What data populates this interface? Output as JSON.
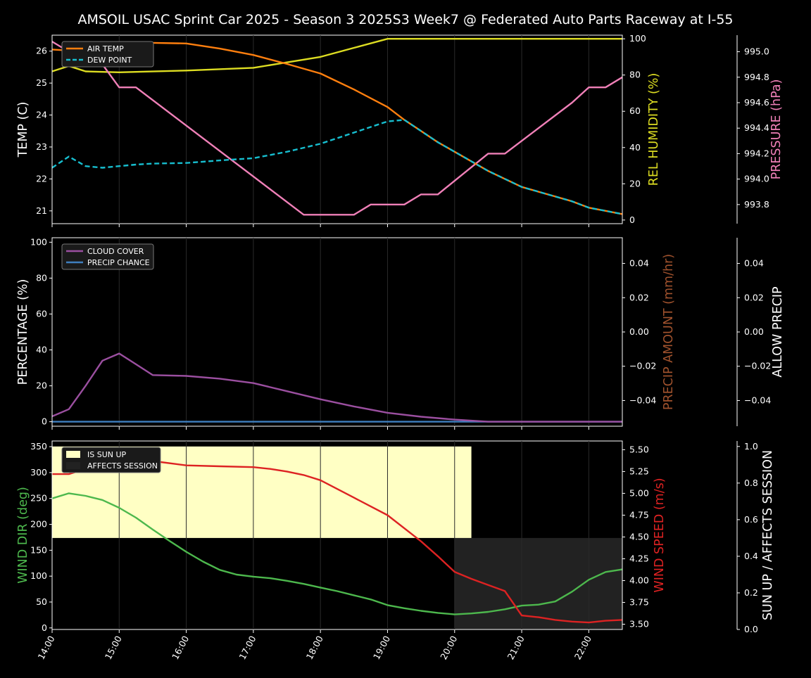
{
  "title": "AMSOIL USAC Sprint Car 2025 - Season 3 2025S3 Week7 @ Federated Auto Parts Raceway at I-55",
  "colors": {
    "background": "#000000",
    "air_temp": "#ff7f0e",
    "dew_point": "#17becf",
    "rel_humidity": "#dddd22",
    "pressure": "#f080b8",
    "cloud_cover": "#9b4fa0",
    "precip_chance": "#3f7fbf",
    "precip_amount_label": "#a0522d",
    "wind_dir": "#4db84d",
    "wind_speed": "#dd2222",
    "sun_up": "#ffffc4",
    "affects_session": "#222222"
  },
  "x_ticks": [
    "14:00",
    "15:00",
    "16:00",
    "17:00",
    "18:00",
    "19:00",
    "20:00",
    "21:00",
    "22:00"
  ],
  "chart_data": [
    {
      "type": "line",
      "panel": "top",
      "x_range": [
        "14:00",
        "22:30"
      ],
      "left_axis": {
        "label": "TEMP (C)",
        "ylim": [
          20.6,
          26.5
        ],
        "ticks": [
          21,
          22,
          23,
          24,
          25,
          26
        ]
      },
      "right_axis": {
        "label": "REL HUMIDITY (%)",
        "ylim": [
          -2,
          102
        ],
        "ticks": [
          0,
          20,
          40,
          60,
          80,
          100
        ]
      },
      "right_axis2": {
        "label": "PRESSURE (hPa)",
        "ylim": [
          993.65,
          995.13
        ],
        "ticks": [
          "993.8",
          "994.0",
          "994.2",
          "994.4",
          "994.6",
          "994.8",
          "995.0"
        ]
      },
      "legend": {
        "position": "top-left",
        "entries": [
          "AIR TEMP",
          "DEW POINT"
        ]
      },
      "series": [
        {
          "name": "AIR TEMP",
          "axis": "left",
          "style": "solid",
          "x": [
            "14:00",
            "14:15",
            "14:30",
            "14:45",
            "15:00",
            "15:15",
            "15:30",
            "16:00",
            "16:30",
            "17:00",
            "17:30",
            "18:00",
            "18:30",
            "19:00",
            "19:15",
            "19:30",
            "19:45",
            "20:00",
            "20:15",
            "20:30",
            "20:45",
            "21:00",
            "21:15",
            "21:30",
            "21:45",
            "22:00",
            "22:15",
            "22:30"
          ],
          "values": [
            26.05,
            26.02,
            26.1,
            26.2,
            26.28,
            26.28,
            26.26,
            26.24,
            26.08,
            25.88,
            25.6,
            25.3,
            24.8,
            24.25,
            23.85,
            23.5,
            23.15,
            22.85,
            22.55,
            22.25,
            22.0,
            21.75,
            21.6,
            21.45,
            21.3,
            21.1,
            21.0,
            20.9
          ]
        },
        {
          "name": "DEW POINT",
          "axis": "left",
          "style": "dashed",
          "x": [
            "14:00",
            "14:15",
            "14:30",
            "14:45",
            "15:00",
            "15:15",
            "15:30",
            "16:00",
            "16:30",
            "17:00",
            "17:30",
            "18:00",
            "18:30",
            "19:00",
            "19:15",
            "19:30",
            "19:45",
            "20:00",
            "20:15",
            "20:30",
            "20:45",
            "21:00",
            "21:15",
            "21:30",
            "21:45",
            "22:00",
            "22:15",
            "22:30"
          ],
          "values": [
            22.35,
            22.7,
            22.4,
            22.35,
            22.4,
            22.45,
            22.48,
            22.5,
            22.58,
            22.65,
            22.85,
            23.1,
            23.45,
            23.8,
            23.85,
            23.5,
            23.15,
            22.85,
            22.55,
            22.25,
            22.0,
            21.75,
            21.6,
            21.45,
            21.3,
            21.1,
            21.0,
            20.9
          ]
        },
        {
          "name": "REL HUMIDITY",
          "axis": "right",
          "style": "solid",
          "x": [
            "14:00",
            "14:15",
            "14:30",
            "15:00",
            "16:00",
            "17:00",
            "17:30",
            "18:00",
            "18:30",
            "19:00",
            "19:15",
            "19:30",
            "20:00",
            "21:00",
            "22:00",
            "22:30"
          ],
          "values": [
            82,
            85,
            82,
            81.5,
            82.5,
            84,
            87,
            90,
            95,
            100,
            100,
            100,
            100,
            100,
            100,
            100
          ]
        },
        {
          "name": "PRESSURE",
          "axis": "right2",
          "style": "solid",
          "x": [
            "14:00",
            "14:15",
            "14:30",
            "14:45",
            "15:00",
            "15:15",
            "17:45",
            "18:30",
            "18:45",
            "19:15",
            "19:30",
            "19:45",
            "20:30",
            "20:45",
            "21:45",
            "22:00",
            "22:15",
            "22:30"
          ],
          "values": [
            995.08,
            995.0,
            995.0,
            994.9,
            994.72,
            994.72,
            993.72,
            993.72,
            993.8,
            993.8,
            993.88,
            993.88,
            994.2,
            994.2,
            994.6,
            994.72,
            994.72,
            994.8
          ]
        }
      ]
    },
    {
      "type": "line",
      "panel": "middle",
      "x_range": [
        "14:00",
        "22:30"
      ],
      "left_axis": {
        "label": "PERCENTAGE (%)",
        "ylim": [
          -2.5,
          102.5
        ],
        "ticks": [
          0,
          20,
          40,
          60,
          80,
          100
        ]
      },
      "right_axis": {
        "label": "PRECIP AMOUNT (mm/hr)",
        "ylim": [
          -0.055,
          0.055
        ],
        "ticks": [
          "−0.04",
          "−0.02",
          "0.00",
          "0.02",
          "0.04"
        ]
      },
      "right_axis2": {
        "label": "ALLOW PRECIP",
        "ylim": [
          -0.055,
          0.055
        ],
        "ticks": [
          "−0.04",
          "−0.02",
          "0.00",
          "0.02",
          "0.04"
        ]
      },
      "legend": {
        "position": "top-left",
        "entries": [
          "CLOUD COVER",
          "PRECIP CHANCE"
        ]
      },
      "series": [
        {
          "name": "CLOUD COVER",
          "axis": "left",
          "x": [
            "14:00",
            "14:15",
            "14:30",
            "14:45",
            "15:00",
            "15:15",
            "15:30",
            "16:00",
            "16:30",
            "17:00",
            "17:30",
            "18:00",
            "18:30",
            "19:00",
            "19:30",
            "20:00",
            "20:30",
            "21:00",
            "22:00",
            "22:30"
          ],
          "values": [
            3,
            7,
            20,
            34,
            38,
            32,
            26,
            25.5,
            24,
            21.5,
            17,
            12.5,
            8.5,
            5,
            2.8,
            1.2,
            0,
            0,
            0,
            0
          ]
        },
        {
          "name": "PRECIP CHANCE",
          "axis": "left",
          "x": [
            "14:00",
            "22:30"
          ],
          "values": [
            0,
            0
          ]
        }
      ]
    },
    {
      "type": "line",
      "panel": "bottom",
      "x_range": [
        "14:00",
        "22:30"
      ],
      "left_axis": {
        "label": "WIND DIR (deg)",
        "ylim": [
          -3,
          361
        ],
        "ticks": [
          0,
          50,
          100,
          150,
          200,
          250,
          300,
          350
        ]
      },
      "right_axis": {
        "label": "WIND SPEED (m/s)",
        "ylim": [
          3.44,
          5.6
        ],
        "ticks": [
          "3.50",
          "3.75",
          "4.00",
          "4.25",
          "4.50",
          "4.75",
          "5.00",
          "5.25",
          "5.50"
        ]
      },
      "right_axis2": {
        "label": "SUN UP / AFFECTS SESSION",
        "ylim": [
          0,
          1.03
        ],
        "ticks": [
          "0.0",
          "0.2",
          "0.4",
          "0.6",
          "0.8",
          "1.0"
        ]
      },
      "legend": {
        "position": "top-left",
        "entries": [
          "IS SUN UP",
          "AFFECTS SESSION"
        ]
      },
      "bands": [
        {
          "name": "IS SUN UP",
          "x": [
            "14:00",
            "20:15"
          ],
          "value": 1.0
        },
        {
          "name": "AFFECTS SESSION",
          "x": [
            "20:00",
            "22:30"
          ],
          "value": 0.5
        }
      ],
      "series": [
        {
          "name": "WIND DIR",
          "axis": "left",
          "x": [
            "14:00",
            "14:15",
            "14:30",
            "14:45",
            "15:00",
            "15:15",
            "15:30",
            "15:45",
            "16:00",
            "16:15",
            "16:30",
            "16:45",
            "17:00",
            "17:15",
            "17:30",
            "17:45",
            "18:00",
            "18:15",
            "18:30",
            "18:45",
            "19:00",
            "19:15",
            "19:30",
            "19:45",
            "20:00",
            "20:15",
            "20:30",
            "20:45",
            "21:00",
            "21:15",
            "21:30",
            "21:45",
            "22:00",
            "22:15",
            "22:30"
          ],
          "values": [
            250,
            260,
            255,
            247,
            232,
            213,
            190,
            168,
            147,
            128,
            112,
            103,
            99,
            96,
            91,
            85,
            78,
            71,
            63,
            55,
            44,
            38,
            33,
            29,
            26,
            28,
            31,
            36,
            43,
            45,
            51,
            70,
            93,
            108,
            113
          ]
        },
        {
          "name": "WIND SPEED",
          "axis": "right",
          "x": [
            "14:00",
            "14:15",
            "14:30",
            "14:45",
            "15:00",
            "15:15",
            "15:30",
            "16:00",
            "16:30",
            "17:00",
            "17:15",
            "17:30",
            "17:45",
            "18:00",
            "18:30",
            "19:00",
            "19:30",
            "19:45",
            "20:00",
            "20:15",
            "20:30",
            "20:45",
            "21:00",
            "21:15",
            "21:30",
            "21:45",
            "22:00",
            "22:15",
            "22:30"
          ],
          "values": [
            5.22,
            5.22,
            5.28,
            5.35,
            5.4,
            5.4,
            5.37,
            5.32,
            5.31,
            5.3,
            5.28,
            5.25,
            5.21,
            5.15,
            4.95,
            4.75,
            4.45,
            4.28,
            4.1,
            4.02,
            3.95,
            3.88,
            3.6,
            3.58,
            3.55,
            3.53,
            3.52,
            3.54,
            3.55
          ]
        }
      ]
    }
  ]
}
